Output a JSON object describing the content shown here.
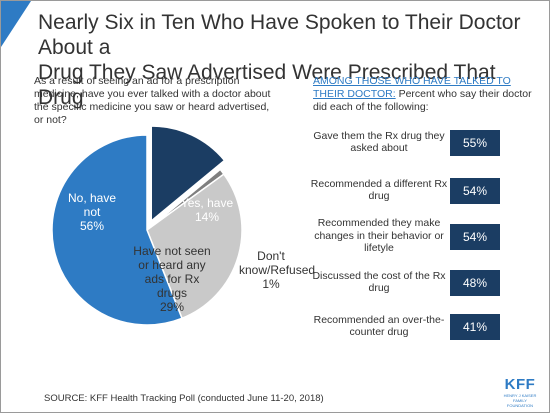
{
  "title": {
    "line1": "Nearly Six in Ten Who Have Spoken to Their Doctor About a",
    "line2": "Drug They Saw Advertised Were Prescribed That Drug"
  },
  "question": "As a result of seeing an ad for a prescription medicine, have you ever talked with a doctor about the specific medicine you saw or heard advertised, or not?",
  "right_header": {
    "underlined": "AMONG THOSE WHO HAVE TALKED TO THEIR DOCTOR:",
    "rest": " Percent who say their doctor did each of the following:"
  },
  "source": "SOURCE: KFF Health Tracking Poll (conducted June 11-20, 2018)",
  "logo": {
    "text": "KFF",
    "subtext": "HENRY J KAISER FAMILY FOUNDATION"
  },
  "colors": {
    "accent": "#2e7bc4",
    "navy": "#1b3d63",
    "gray": "#c9c9c9",
    "dark_gray": "#7f7f7f"
  },
  "chart_data": [
    {
      "type": "pie",
      "title": "",
      "slices": [
        {
          "label": "No, have not",
          "value": 56,
          "value_text": "56%",
          "color": "#2e7bc4"
        },
        {
          "label": "Yes, have",
          "value": 14,
          "value_text": "14%",
          "color": "#1b3d63"
        },
        {
          "label": "Don't know/Refused",
          "value": 1,
          "value_text": "1%",
          "color": "#7f7f7f"
        },
        {
          "label": "Have not seen or heard any ads for Rx drugs",
          "value": 29,
          "value_text": "29%",
          "color": "#c9c9c9"
        }
      ]
    },
    {
      "type": "bar",
      "title": "",
      "categories": [
        "Gave them the Rx drug they asked about",
        "Recommended a different Rx drug",
        "Recommended they make changes in their behavior or lifetyle",
        "Discussed the cost of the Rx drug",
        "Recommended an over-the-counter drug"
      ],
      "values": [
        55,
        54,
        54,
        48,
        41
      ],
      "value_labels": [
        "55%",
        "54%",
        "54%",
        "48%",
        "41%"
      ]
    }
  ]
}
